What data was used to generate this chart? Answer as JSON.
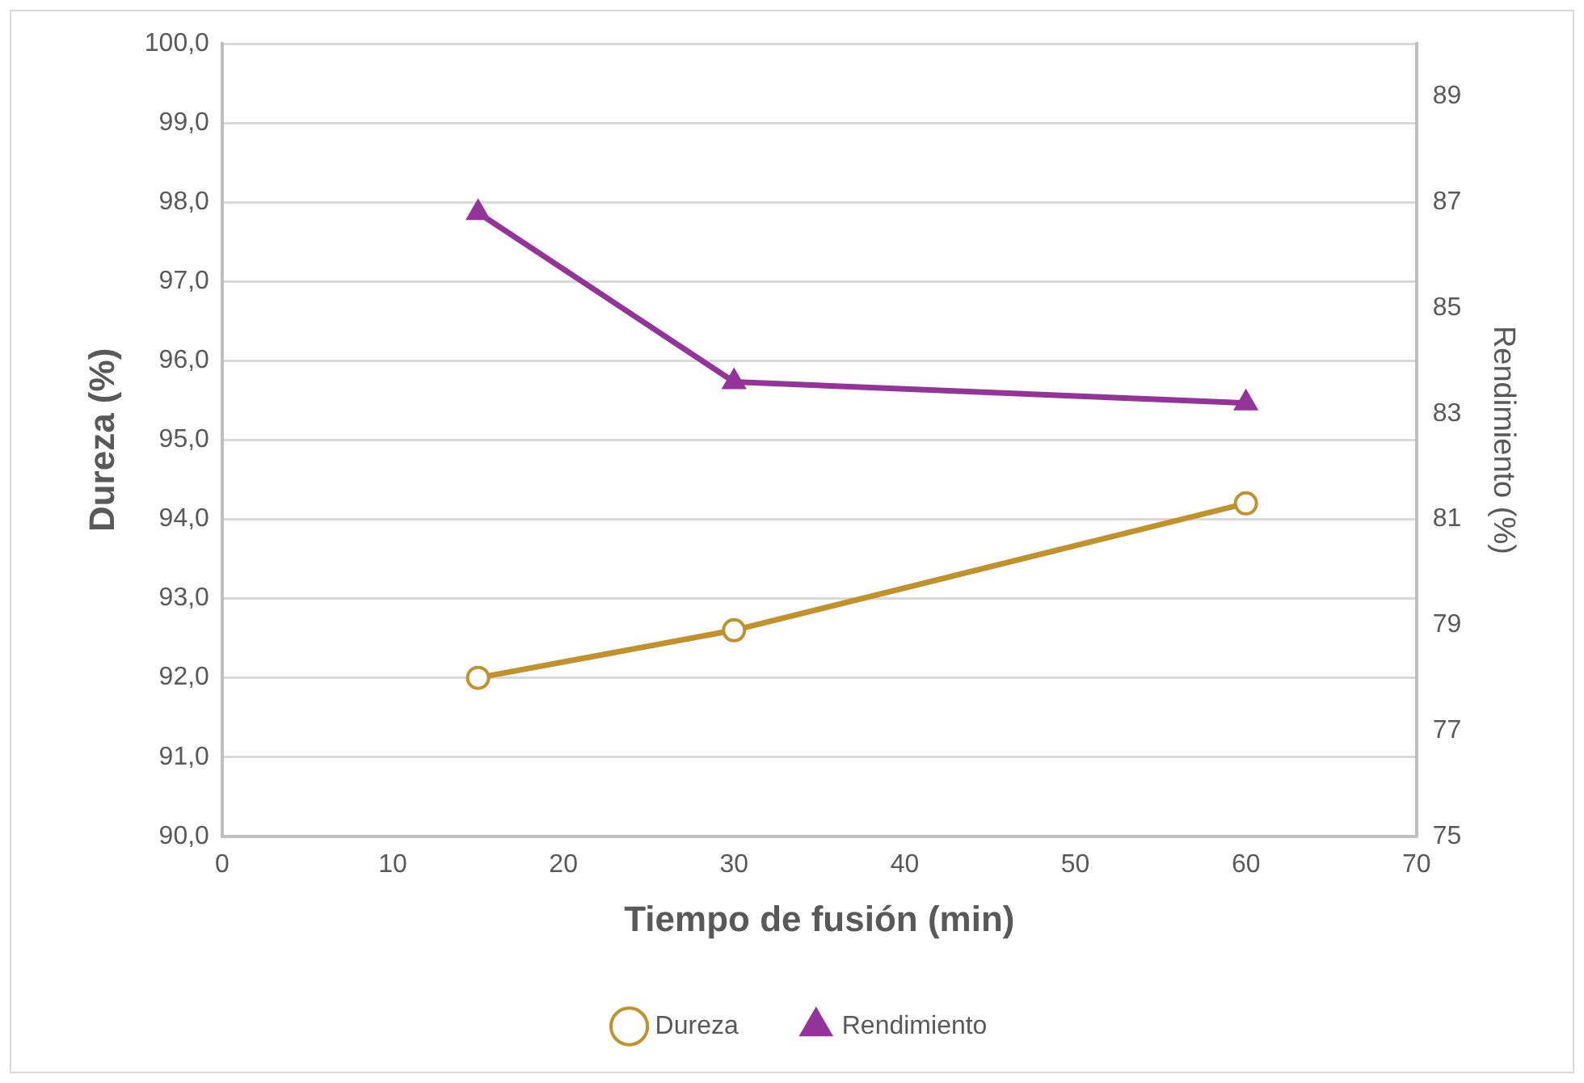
{
  "chart_data": {
    "type": "line",
    "xlabel": "Tiempo de fusión (min)",
    "ylabel": "Dureza (%)",
    "y2label": "Rendimiento (%)",
    "x": [
      15,
      30,
      60
    ],
    "series": [
      {
        "name": "Dureza",
        "color": "#c1922b",
        "values": [
          92.0,
          92.6,
          94.2
        ],
        "marker": "circle"
      },
      {
        "name": "Rendimiento",
        "color": "#94349a",
        "values": [
          86.8,
          83.6,
          83.2
        ],
        "marker": "triangle",
        "axis": "y2"
      }
    ],
    "xlim": [
      0,
      70
    ],
    "xticks": [
      0,
      10,
      20,
      30,
      40,
      50,
      60,
      70
    ],
    "ylim": [
      90,
      100
    ],
    "yticks": [
      {
        "value": 90,
        "label": "90,0"
      },
      {
        "value": 91,
        "label": "91,0"
      },
      {
        "value": 92,
        "label": "92,0"
      },
      {
        "value": 93,
        "label": "93,0"
      },
      {
        "value": 94,
        "label": "94,0"
      },
      {
        "value": 95,
        "label": "95,0"
      },
      {
        "value": 96,
        "label": "96,0"
      },
      {
        "value": 97,
        "label": "97,0"
      },
      {
        "value": 98,
        "label": "98,0"
      },
      {
        "value": 99,
        "label": "99,0"
      },
      {
        "value": 100,
        "label": "100,0"
      }
    ],
    "y2lim": [
      75,
      90
    ],
    "y2ticks": [
      75,
      77,
      79,
      81,
      83,
      85,
      87,
      89
    ],
    "grid": "y",
    "legend": "bottom",
    "line_style": "solid"
  }
}
